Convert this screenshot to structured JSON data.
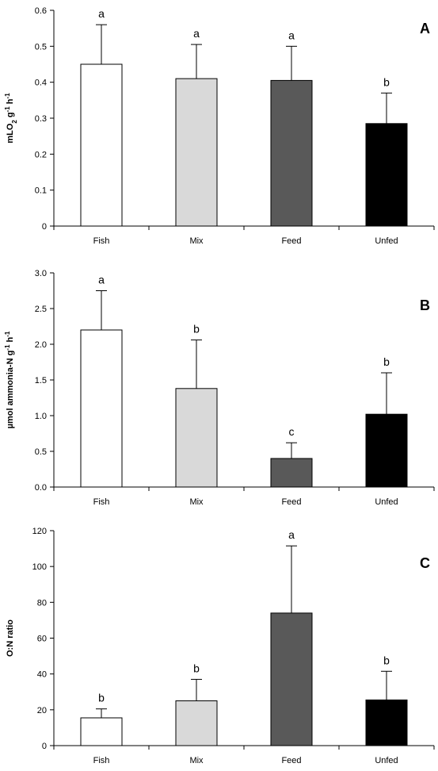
{
  "chart_data": [
    {
      "type": "bar",
      "panel_label": "A",
      "ylabel_parts": [
        [
          "mLO",
          0
        ],
        [
          "2",
          1
        ],
        [
          " g",
          0
        ],
        [
          "-1",
          -1
        ],
        [
          " h",
          0
        ],
        [
          "-1",
          -1
        ]
      ],
      "categories": [
        "Fish",
        "Mix",
        "Feed",
        "Unfed"
      ],
      "values": [
        0.45,
        0.41,
        0.405,
        0.285
      ],
      "errors": [
        0.11,
        0.095,
        0.095,
        0.085
      ],
      "significance": [
        "a",
        "a",
        "a",
        "b"
      ],
      "ylim": [
        0,
        0.6
      ],
      "yticks": [
        0,
        0.1,
        0.2,
        0.3,
        0.4,
        0.5,
        0.6
      ],
      "ytick_labels": [
        "0",
        "0.1",
        "0.2",
        "0.3",
        "0.4",
        "0.5",
        "0.6"
      ],
      "bar_colors": [
        "#ffffff",
        "#d9d9d9",
        "#595959",
        "#000000"
      ]
    },
    {
      "type": "bar",
      "panel_label": "B",
      "ylabel_parts": [
        [
          "µmol ammonia-N g",
          0
        ],
        [
          "-1",
          -1
        ],
        [
          " h",
          0
        ],
        [
          "-1",
          -1
        ]
      ],
      "categories": [
        "Fish",
        "Mix",
        "Feed",
        "Unfed"
      ],
      "values": [
        2.2,
        1.38,
        0.4,
        1.02
      ],
      "errors": [
        0.55,
        0.68,
        0.22,
        0.58
      ],
      "significance": [
        "a",
        "b",
        "c",
        "b"
      ],
      "ylim": [
        0,
        3.0
      ],
      "yticks": [
        0,
        0.5,
        1.0,
        1.5,
        2.0,
        2.5,
        3.0
      ],
      "ytick_labels": [
        "0.0",
        "0.5",
        "1.0",
        "1.5",
        "2.0",
        "2.5",
        "3.0"
      ],
      "bar_colors": [
        "#ffffff",
        "#d9d9d9",
        "#595959",
        "#000000"
      ]
    },
    {
      "type": "bar",
      "panel_label": "C",
      "ylabel_parts": [
        [
          "O:N ratio",
          0
        ]
      ],
      "categories": [
        "Fish",
        "Mix",
        "Feed",
        "Unfed"
      ],
      "values": [
        15.5,
        25,
        74,
        25.5
      ],
      "errors": [
        5,
        12,
        37.5,
        16
      ],
      "significance": [
        "b",
        "b",
        "a",
        "b"
      ],
      "ylim": [
        0,
        120
      ],
      "yticks": [
        0,
        20,
        40,
        60,
        80,
        100,
        120
      ],
      "ytick_labels": [
        "0",
        "20",
        "40",
        "60",
        "80",
        "100",
        "120"
      ],
      "bar_colors": [
        "#ffffff",
        "#d9d9d9",
        "#595959",
        "#000000"
      ]
    }
  ]
}
